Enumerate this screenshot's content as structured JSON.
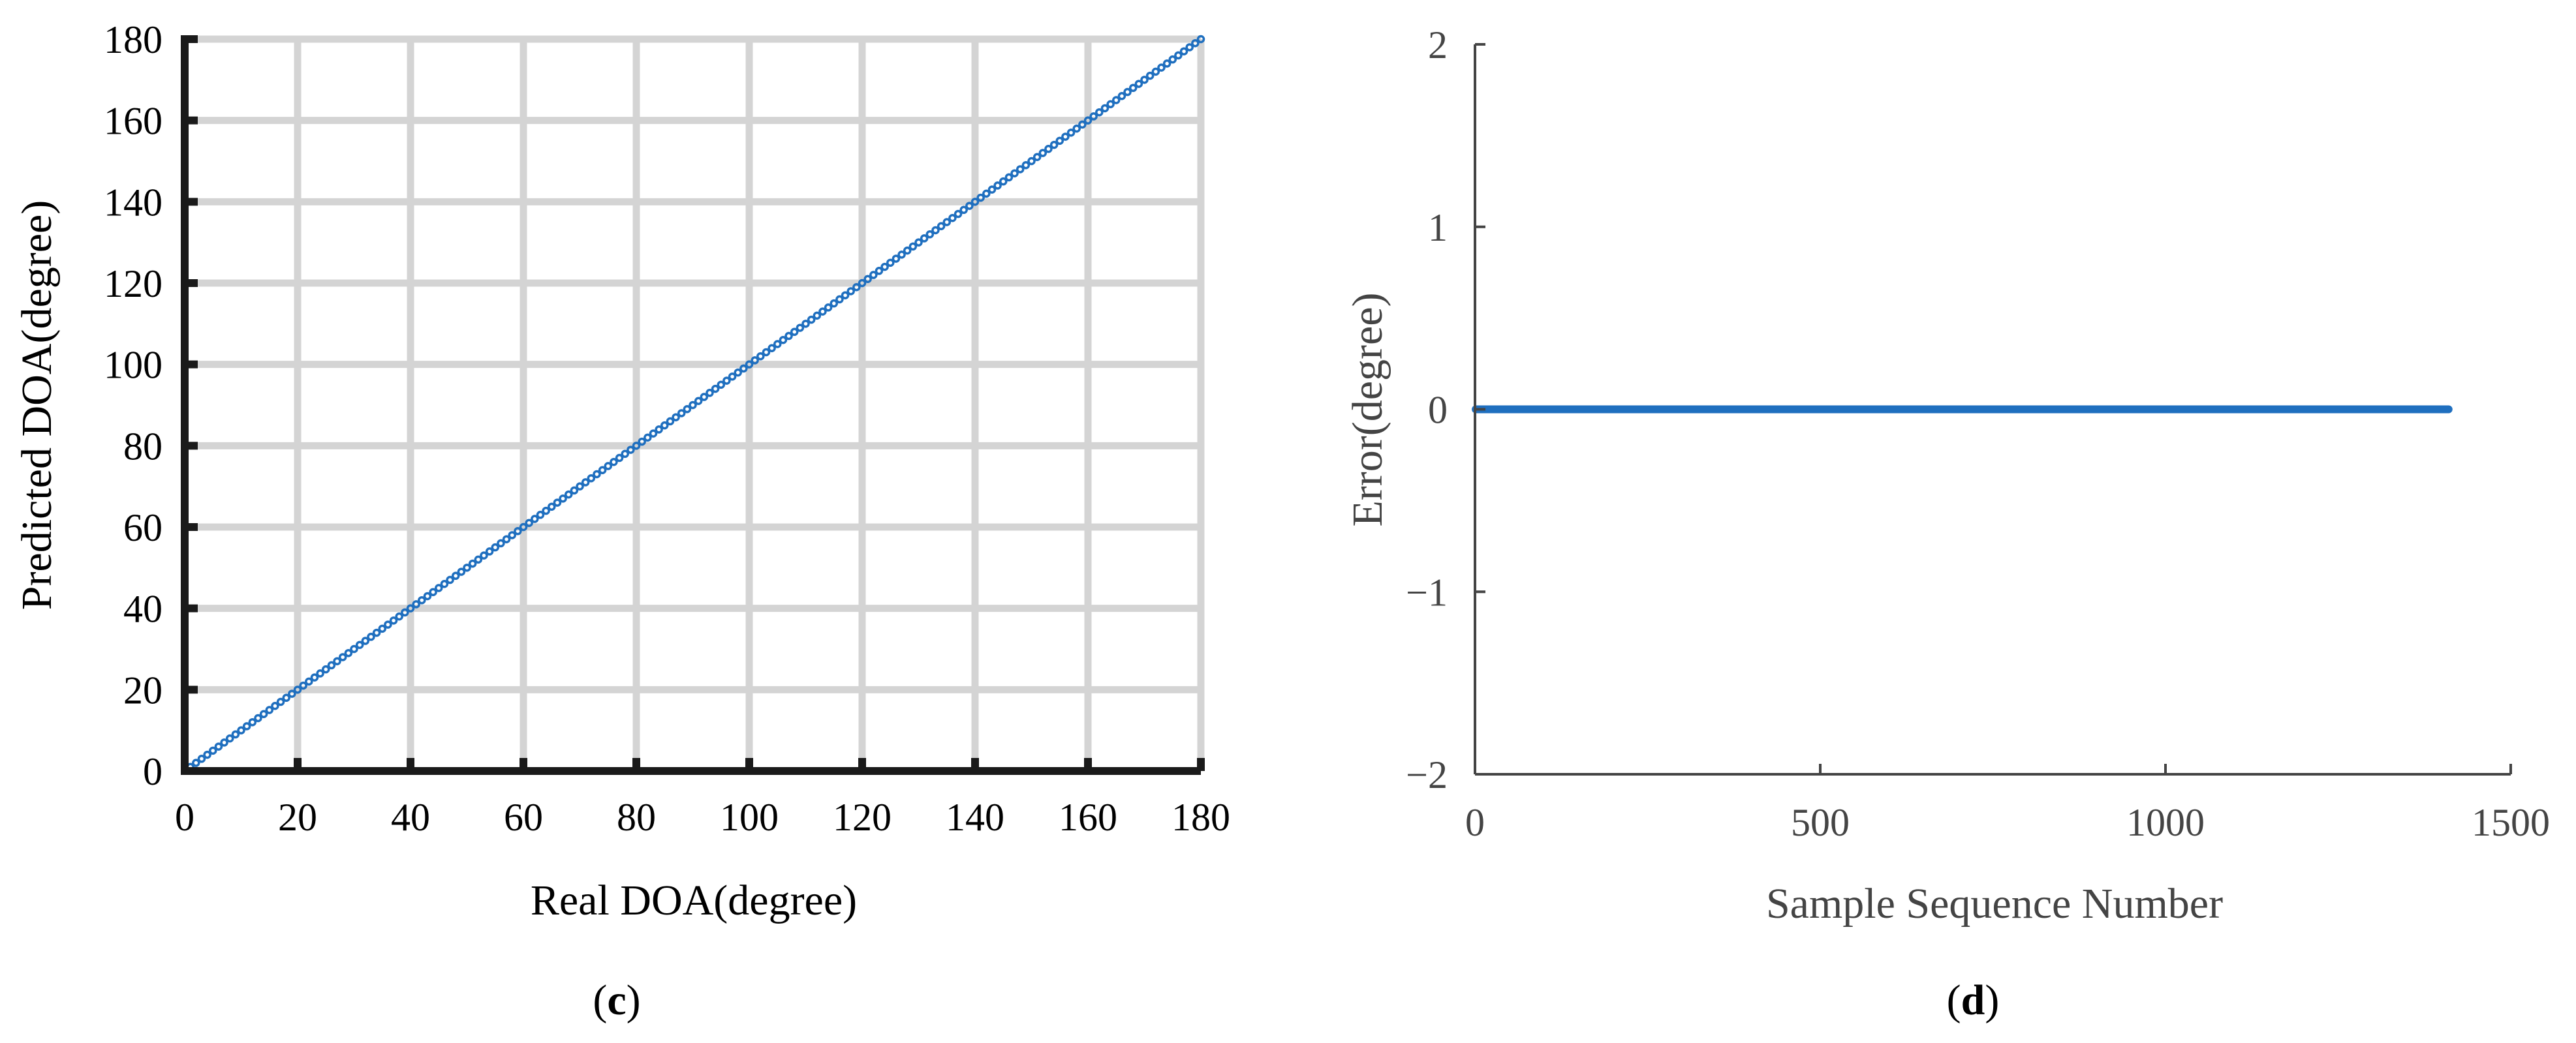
{
  "figure": {
    "panel_labels": [
      {
        "open": "(",
        "letter": "c",
        "close": ")"
      },
      {
        "open": "(",
        "letter": "d",
        "close": ")"
      }
    ]
  },
  "colors": {
    "series": "#1f6fbf",
    "grid": "#d4d4d4",
    "axis_c": "#1a1a1a",
    "axis_d": "#444444"
  },
  "chart_data": [
    {
      "panel": "c",
      "type": "scatter",
      "title": "",
      "xlabel": "Real DOA(degree)",
      "ylabel": "Predicted DOA(degree)",
      "xlim": [
        0,
        180
      ],
      "ylim": [
        0,
        180
      ],
      "xticks": [
        0,
        20,
        40,
        60,
        80,
        100,
        120,
        140,
        160,
        180
      ],
      "yticks": [
        0,
        20,
        40,
        60,
        80,
        100,
        120,
        140,
        160,
        180
      ],
      "grid": true,
      "series": [
        {
          "x_start": 1,
          "x_end": 180,
          "x_step": 1,
          "relation": "y = x"
        }
      ]
    },
    {
      "panel": "d",
      "type": "line",
      "title": "",
      "xlabel": "Sample Sequence Number",
      "ylabel": "Error(degree)",
      "xlim": [
        0,
        1500
      ],
      "ylim": [
        -2,
        2
      ],
      "xticks": [
        0,
        500,
        1000,
        1500
      ],
      "yticks": [
        2,
        1,
        0,
        -1,
        -2
      ],
      "ytick_labels": [
        "2",
        "1",
        "0",
        "−1",
        "−2"
      ],
      "grid": false,
      "series": [
        {
          "x": [
            1,
            1410
          ],
          "y": [
            0,
            0
          ]
        }
      ]
    }
  ]
}
